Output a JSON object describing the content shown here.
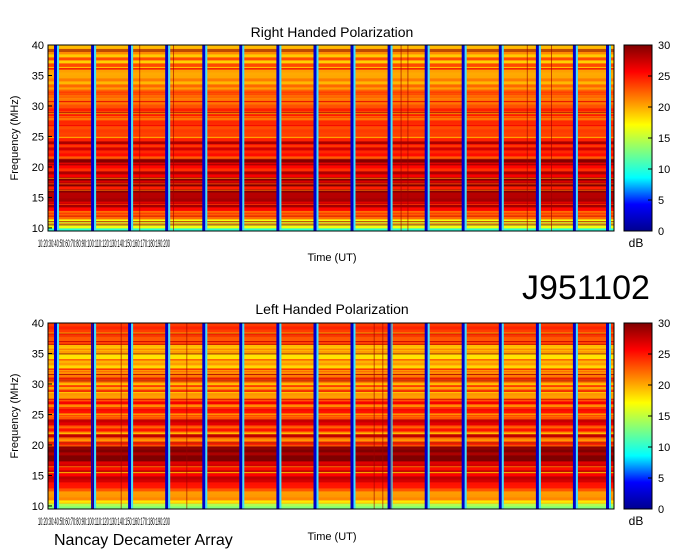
{
  "header": {
    "dataset_id": "J951102"
  },
  "footer": {
    "instrument": "Nancay Decameter Array"
  },
  "chart_data": [
    {
      "type": "heatmap",
      "title": "Right Handed Polarization",
      "xlabel": "Time (UT)",
      "ylabel": "Frequency (MHz)",
      "ylim": [
        9.5,
        40
      ],
      "yticks": [
        10,
        15,
        20,
        25,
        30,
        35,
        40
      ],
      "x_tick_labels_overlapping": "10:20:30:40:50:60:70:80:90:100:110:120:130:140:150:160:170:180:190:200",
      "colorbar": {
        "label": "dB",
        "range": [
          0,
          30
        ],
        "ticks": [
          0,
          5,
          10,
          15,
          20,
          25,
          30
        ]
      },
      "colormap": [
        "#00008f",
        "#0000ff",
        "#00ffff",
        "#7fff7f",
        "#ffff00",
        "#ff7f00",
        "#ff0000",
        "#7f0000"
      ],
      "summary": {
        "intensity_by_frequency_dB": [
          {
            "freq_mhz": 10,
            "value": 13
          },
          {
            "freq_mhz": 12,
            "value": 22
          },
          {
            "freq_mhz": 15,
            "value": 27
          },
          {
            "freq_mhz": 18,
            "value": 27
          },
          {
            "freq_mhz": 22,
            "value": 25
          },
          {
            "freq_mhz": 27,
            "value": 24
          },
          {
            "freq_mhz": 32,
            "value": 21
          },
          {
            "freq_mhz": 37,
            "value": 21
          },
          {
            "freq_mhz": 40,
            "value": 22
          }
        ],
        "gaps": 16
      }
    },
    {
      "type": "heatmap",
      "title": "Left Handed Polarization",
      "xlabel": "Time (UT)",
      "ylabel": "Frequency (MHz)",
      "ylim": [
        9.5,
        40
      ],
      "yticks": [
        10,
        15,
        20,
        25,
        30,
        35,
        40
      ],
      "x_tick_labels_overlapping": "10:20:30:40:50:60:70:80:90:100:110:120:130:140:150:160:170:180:190:200",
      "colorbar": {
        "label": "dB",
        "range": [
          0,
          30
        ],
        "ticks": [
          0,
          5,
          10,
          15,
          20,
          25,
          30
        ]
      },
      "colormap": [
        "#00008f",
        "#0000ff",
        "#00ffff",
        "#7fff7f",
        "#ffff00",
        "#ff7f00",
        "#ff0000",
        "#7f0000"
      ],
      "summary": {
        "intensity_by_frequency_dB": [
          {
            "freq_mhz": 10,
            "value": 13
          },
          {
            "freq_mhz": 12,
            "value": 22
          },
          {
            "freq_mhz": 15,
            "value": 27
          },
          {
            "freq_mhz": 18,
            "value": 26
          },
          {
            "freq_mhz": 22,
            "value": 24
          },
          {
            "freq_mhz": 27,
            "value": 23
          },
          {
            "freq_mhz": 32,
            "value": 21
          },
          {
            "freq_mhz": 37,
            "value": 21
          },
          {
            "freq_mhz": 40,
            "value": 22
          }
        ],
        "gaps": 16
      }
    }
  ]
}
